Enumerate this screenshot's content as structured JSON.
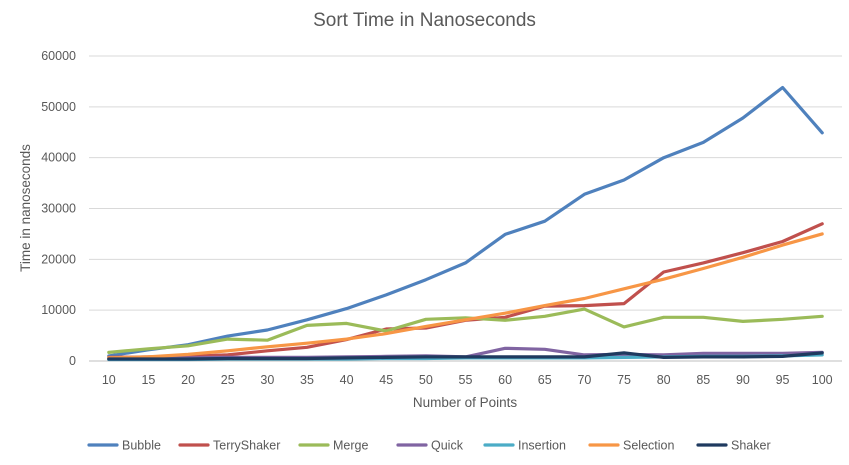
{
  "chart_data": {
    "type": "line",
    "title": "Sort Time in Nanoseconds",
    "xlabel": "Number of Points",
    "ylabel": "Time in nanoseconds",
    "ylim": [
      0,
      60000
    ],
    "yticks": [
      0,
      10000,
      20000,
      30000,
      40000,
      50000,
      60000
    ],
    "grid": true,
    "legend_position": "bottom",
    "categories": [
      "10",
      "15",
      "20",
      "25",
      "30",
      "35",
      "40",
      "45",
      "50",
      "55",
      "60",
      "65",
      "70",
      "75",
      "80",
      "85",
      "90",
      "95",
      "100"
    ],
    "series": [
      {
        "name": "Bubble",
        "color": "#4f81bd",
        "values": [
          1000,
          2200,
          3200,
          4900,
          6100,
          8100,
          10300,
          13000,
          16000,
          19300,
          24900,
          27500,
          32800,
          35600,
          40000,
          43000,
          47800,
          53800,
          44900
        ]
      },
      {
        "name": "TerryShaker",
        "color": "#c0504d",
        "values": [
          700,
          800,
          900,
          1200,
          2000,
          2700,
          4200,
          6300,
          6500,
          8000,
          8600,
          10800,
          10900,
          11300,
          17500,
          19300,
          21300,
          23500,
          27000
        ]
      },
      {
        "name": "Merge",
        "color": "#9bbb59",
        "values": [
          1700,
          2400,
          3000,
          4300,
          4100,
          7000,
          7400,
          5900,
          8200,
          8500,
          8000,
          8800,
          10200,
          6700,
          8600,
          8600,
          7800,
          8200,
          8800
        ]
      },
      {
        "name": "Quick",
        "color": "#8064a2",
        "values": [
          500,
          500,
          600,
          700,
          700,
          700,
          800,
          900,
          1000,
          800,
          2500,
          2300,
          1200,
          1300,
          1200,
          1500,
          1500,
          1500,
          1700
        ]
      },
      {
        "name": "Insertion",
        "color": "#4bacc6",
        "values": [
          300,
          300,
          300,
          400,
          400,
          400,
          400,
          500,
          500,
          600,
          600,
          600,
          600,
          700,
          800,
          900,
          900,
          1000,
          1200
        ]
      },
      {
        "name": "Selection",
        "color": "#f79646",
        "values": [
          600,
          800,
          1300,
          2000,
          2800,
          3500,
          4300,
          5400,
          6800,
          8100,
          9400,
          10900,
          12300,
          14200,
          16100,
          18200,
          20400,
          22800,
          25000
        ]
      },
      {
        "name": "Shaker",
        "color": "#1f3a5f",
        "values": [
          400,
          400,
          400,
          500,
          500,
          500,
          600,
          700,
          800,
          800,
          800,
          800,
          800,
          1600,
          700,
          800,
          800,
          900,
          1600
        ]
      }
    ]
  }
}
